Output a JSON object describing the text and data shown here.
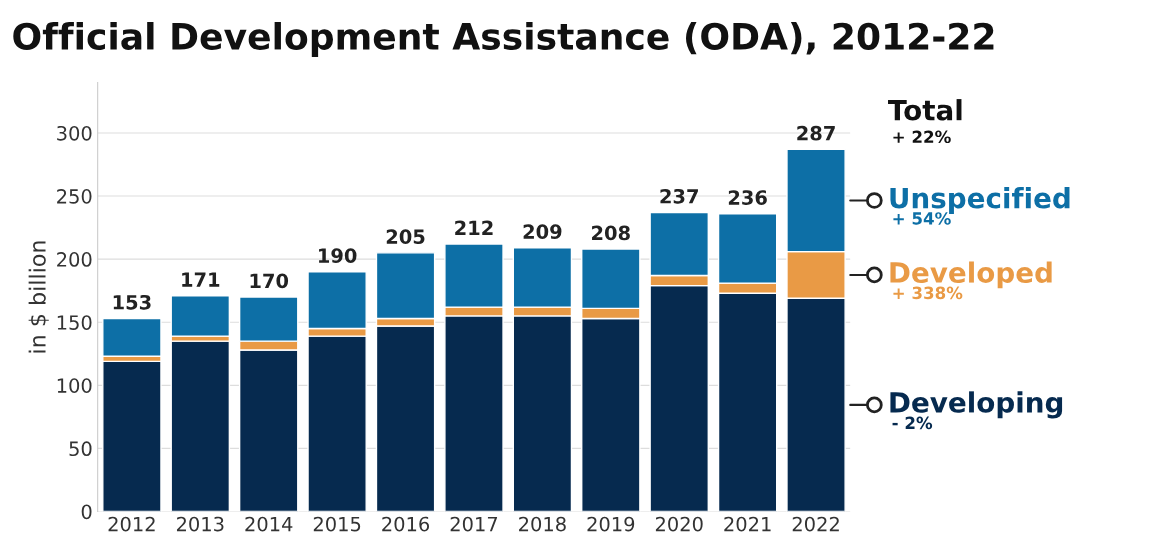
{
  "chart_data": {
    "type": "bar",
    "stacked": true,
    "title": "Official Development Assistance (ODA), 2012-22",
    "ylabel": "in $ billion",
    "categories": [
      "2012",
      "2013",
      "2014",
      "2015",
      "2016",
      "2017",
      "2018",
      "2019",
      "2020",
      "2021",
      "2022"
    ],
    "series": [
      {
        "name": "Developing",
        "color": "#062a4f",
        "values": [
          119,
          135,
          128,
          139,
          147,
          155,
          155,
          153,
          179,
          173,
          169
        ]
      },
      {
        "name": "Developed",
        "color": "#e99a45",
        "values": [
          4,
          4,
          7,
          6,
          6,
          7,
          7,
          8,
          8,
          8,
          37
        ]
      },
      {
        "name": "Unspecified",
        "color": "#0d6fa6",
        "values": [
          30,
          32,
          35,
          45,
          52,
          50,
          47,
          47,
          50,
          55,
          81
        ]
      }
    ],
    "totals": [
      "153",
      "171",
      "170",
      "190",
      "205",
      "212",
      "209",
      "208",
      "237",
      "236",
      "287"
    ],
    "annotations": [
      "Total",
      "+ 22%",
      "+ 54%",
      "+ 338%",
      "- 2%"
    ],
    "ylim": [
      0,
      340
    ],
    "yticks": [
      0,
      50,
      100,
      150,
      200,
      250,
      300
    ],
    "grid": "y",
    "legend": "right"
  }
}
